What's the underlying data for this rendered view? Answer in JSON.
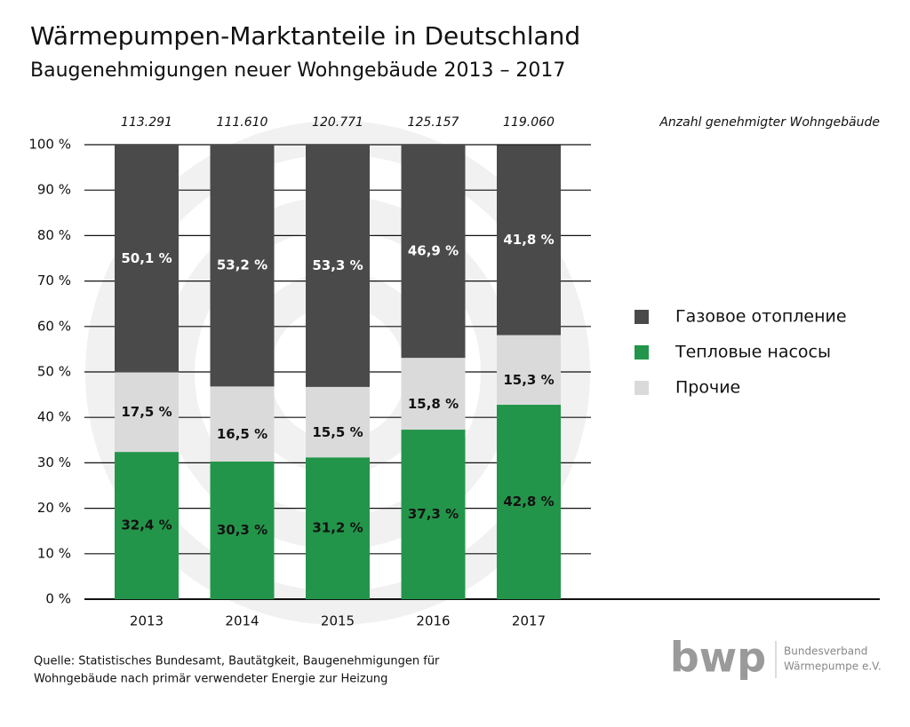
{
  "chart_data": {
    "type": "stacked-bar",
    "title": "Wärmepumpen-Marktanteile in Deutschland",
    "subtitle": "Baugenehmigungen neuer Wohngebäude 2013 – 2017",
    "categories": [
      "2013",
      "2014",
      "2015",
      "2016",
      "2017"
    ],
    "series": [
      {
        "name": "Газовое отопление",
        "color": "#4a4a4a",
        "values": [
          50.1,
          53.2,
          53.3,
          46.9,
          41.8
        ],
        "value_labels": [
          "50,1 %",
          "53,2 %",
          "53,3 %",
          "46,9 %",
          "41,8 %"
        ]
      },
      {
        "name": "Тепловые насосы",
        "color": "#23954a",
        "values": [
          32.4,
          30.3,
          31.2,
          37.3,
          42.8
        ],
        "value_labels": [
          "32,4 %",
          "30,3 %",
          "31,2 %",
          "37,3 %",
          "42,8 %"
        ]
      },
      {
        "name": "Прочие",
        "color": "#dadada",
        "values": [
          17.5,
          16.5,
          15.5,
          15.8,
          15.3
        ],
        "value_labels": [
          "17,5 %",
          "16,5 %",
          "15,5 %",
          "15,8 %",
          "15,3 %"
        ]
      }
    ],
    "totals": {
      "label": "Anzahl genehmigter Wohngebäude",
      "values": [
        113291,
        111610,
        120771,
        125157,
        119060
      ],
      "value_labels": [
        "113.291",
        "111.610",
        "120.771",
        "125.157",
        "119.060"
      ]
    },
    "ylim": [
      0,
      100
    ],
    "yticks": [
      {
        "value": 0,
        "label": "0 %"
      },
      {
        "value": 10,
        "label": "10 %"
      },
      {
        "value": 20,
        "label": "20 %"
      },
      {
        "value": 30,
        "label": "30 %"
      },
      {
        "value": 40,
        "label": "40 %"
      },
      {
        "value": 50,
        "label": "50 %"
      },
      {
        "value": 60,
        "label": "60 %"
      },
      {
        "value": 70,
        "label": "70 %"
      },
      {
        "value": 80,
        "label": "80 %"
      },
      {
        "value": 90,
        "label": "90 %"
      },
      {
        "value": 100,
        "label": "100 %"
      }
    ],
    "grid": true,
    "source": [
      "Quelle: Statistisches Bundesamt, Bautätgkeit, Baugenehmigungen für",
      "Wohngebäude nach primär verwendeter Energie zur Heizung"
    ],
    "logo": {
      "mark": "bwp",
      "text": [
        "Bundesverband",
        "Wärmepumpe e.V."
      ]
    }
  }
}
